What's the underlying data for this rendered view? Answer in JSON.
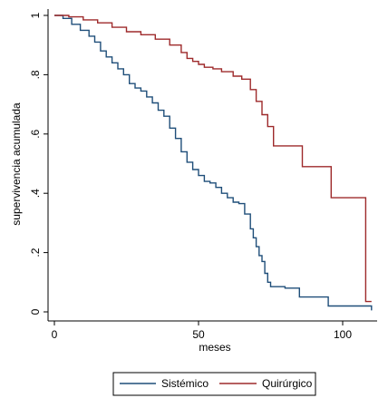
{
  "chart_data": {
    "type": "line",
    "line_shape": "step",
    "title": "",
    "xlabel": "meses",
    "ylabel": "supervivencia acumulada",
    "xlim": [
      0,
      112
    ],
    "ylim": [
      0,
      1
    ],
    "x_ticks": [
      0,
      50,
      100
    ],
    "x_tick_labels": [
      "0",
      "50",
      "100"
    ],
    "y_ticks": [
      0,
      0.2,
      0.4,
      0.6,
      0.8,
      1
    ],
    "y_tick_labels": [
      "0",
      ".2",
      ".4",
      ".6",
      ".8",
      "1"
    ],
    "grid": false,
    "legend": "bottom",
    "series": [
      {
        "name": "Sistémico",
        "color": "#1f4e79",
        "x": [
          0,
          3,
          6,
          9,
          12,
          14,
          16,
          18,
          20,
          22,
          24,
          26,
          28,
          30,
          32,
          34,
          36,
          38,
          40,
          42,
          44,
          46,
          48,
          50,
          52,
          54,
          56,
          58,
          60,
          62,
          64,
          66,
          68,
          69,
          70,
          71,
          72,
          73,
          74,
          75,
          78,
          80,
          85,
          90,
          95,
          100,
          105,
          108,
          110
        ],
        "y": [
          1.0,
          0.99,
          0.97,
          0.95,
          0.93,
          0.91,
          0.88,
          0.86,
          0.84,
          0.82,
          0.8,
          0.77,
          0.755,
          0.745,
          0.725,
          0.705,
          0.68,
          0.66,
          0.62,
          0.585,
          0.54,
          0.505,
          0.48,
          0.46,
          0.44,
          0.435,
          0.42,
          0.4,
          0.385,
          0.37,
          0.365,
          0.33,
          0.28,
          0.25,
          0.22,
          0.19,
          0.17,
          0.13,
          0.1,
          0.085,
          0.085,
          0.08,
          0.05,
          0.05,
          0.02,
          0.02,
          0.02,
          0.02,
          0.005
        ]
      },
      {
        "name": "Quirúrgico",
        "color": "#9e2a2b",
        "x": [
          0,
          5,
          10,
          15,
          20,
          25,
          30,
          35,
          40,
          44,
          46,
          48,
          50,
          52,
          55,
          58,
          62,
          65,
          68,
          70,
          72,
          74,
          76,
          80,
          86,
          90,
          96,
          100,
          105,
          108,
          110
        ],
        "y": [
          1.0,
          0.995,
          0.985,
          0.975,
          0.96,
          0.945,
          0.935,
          0.92,
          0.9,
          0.875,
          0.855,
          0.845,
          0.835,
          0.825,
          0.82,
          0.81,
          0.795,
          0.785,
          0.75,
          0.71,
          0.665,
          0.625,
          0.56,
          0.56,
          0.49,
          0.49,
          0.385,
          0.385,
          0.385,
          0.035,
          0.035
        ]
      }
    ]
  }
}
